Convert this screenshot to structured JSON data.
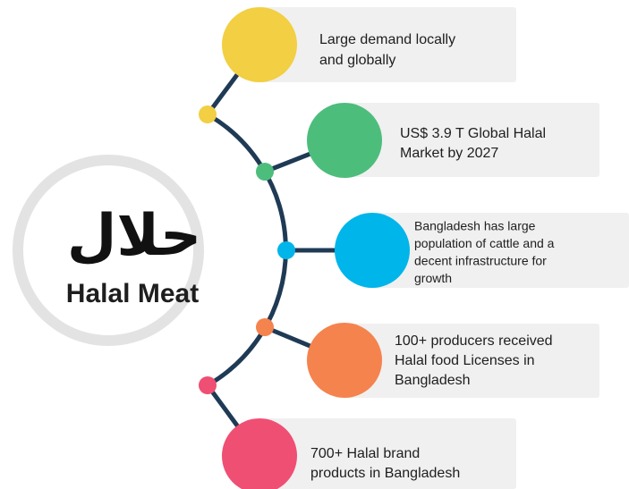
{
  "center": {
    "arabic": "حلال",
    "title": "Halal Meat"
  },
  "items": [
    {
      "color": "#f2cf43",
      "lines": [
        "Large demand locally",
        "and globally"
      ]
    },
    {
      "color": "#4dbd7c",
      "lines": [
        "US$ 3.9 T Global Halal",
        "Market by 2027"
      ]
    },
    {
      "color": "#00b5e9",
      "lines": [
        "Bangladesh has large",
        "population of cattle and a",
        "decent infrastructure for",
        "growth"
      ]
    },
    {
      "color": "#f5834e",
      "lines": [
        "100+ producers received",
        "Halal food Licenses in",
        "Bangladesh"
      ]
    },
    {
      "color": "#ef4f73",
      "lines": [
        "700+ Halal brand",
        "products in Bangladesh"
      ]
    }
  ]
}
